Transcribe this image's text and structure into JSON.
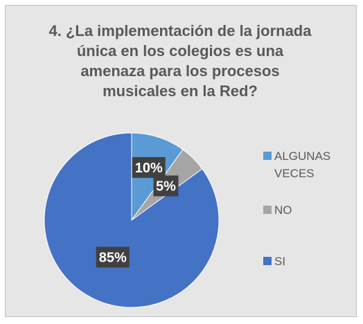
{
  "chart_data": {
    "type": "pie",
    "title": "4. ¿La implementación de la jornada única en los colegios es una amenaza para los procesos musicales en la Red?",
    "title_lines": [
      "4. ¿La implementación de la jornada",
      "única en los colegios es una",
      "amenaza para los procesos",
      "musicales en la Red?"
    ],
    "categories": [
      "ALGUNAS VECES",
      "NO",
      "SI"
    ],
    "values": [
      10,
      5,
      85
    ],
    "data_labels": [
      "10%",
      "5%",
      "85%"
    ],
    "legend_lines": [
      [
        "ALGUNAS",
        "VECES"
      ],
      [
        "NO"
      ],
      [
        "SI"
      ]
    ],
    "colors": [
      "#5b9bd5",
      "#a5a5a5",
      "#4472c4"
    ],
    "background": "#e7e6e6",
    "legend_position": "right"
  }
}
